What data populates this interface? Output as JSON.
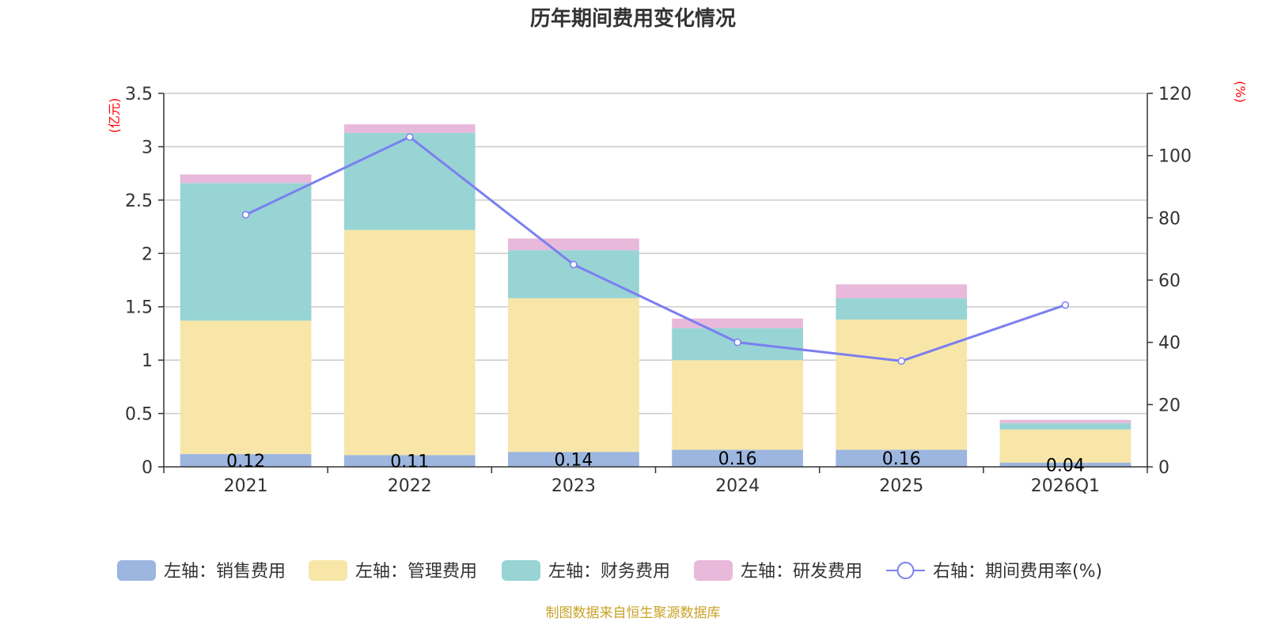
{
  "chart_data": {
    "type": "bar",
    "stacked": true,
    "title": "历年期间费用变化情况",
    "categories": [
      "2021",
      "2022",
      "2023",
      "2024",
      "2025",
      "2026Q1"
    ],
    "left_axis": {
      "unit": "(亿元)",
      "ylim": [
        0,
        3.5
      ],
      "ticks": [
        "0",
        "0.5",
        "1",
        "1.5",
        "2",
        "2.5",
        "3",
        "3.5"
      ],
      "tick_values": [
        0,
        0.5,
        1,
        1.5,
        2,
        2.5,
        3,
        3.5
      ]
    },
    "right_axis": {
      "unit": "(%)",
      "ylim": [
        0,
        120
      ],
      "ticks": [
        "0",
        "20",
        "40",
        "60",
        "80",
        "100",
        "120"
      ],
      "tick_values": [
        0,
        20,
        40,
        60,
        80,
        100,
        120
      ]
    },
    "series": [
      {
        "name": "左轴：销售费用",
        "axis": "left",
        "kind": "bar",
        "color": "#9cb6e0",
        "values": [
          0.12,
          0.11,
          0.14,
          0.16,
          0.16,
          0.04
        ],
        "labels": [
          "0.12",
          "0.11",
          "0.14",
          "0.16",
          "0.16",
          "0.04"
        ]
      },
      {
        "name": "左轴：管理费用",
        "axis": "left",
        "kind": "bar",
        "color": "#f7e6a8",
        "values": [
          1.25,
          2.11,
          1.44,
          0.84,
          1.22,
          0.31
        ]
      },
      {
        "name": "左轴：财务费用",
        "axis": "left",
        "kind": "bar",
        "color": "#98d4d4",
        "values": [
          1.29,
          0.91,
          0.45,
          0.3,
          0.2,
          0.06
        ]
      },
      {
        "name": "左轴：研发费用",
        "axis": "left",
        "kind": "bar",
        "color": "#e8b9da",
        "values": [
          0.08,
          0.08,
          0.11,
          0.09,
          0.13,
          0.03
        ]
      },
      {
        "name": "右轴：期间费用率(%)",
        "axis": "right",
        "kind": "line",
        "color": "#7b7ff0",
        "values": [
          81,
          106,
          65,
          40,
          34,
          52
        ]
      }
    ],
    "source": "制图数据来自恒生聚源数据库"
  }
}
